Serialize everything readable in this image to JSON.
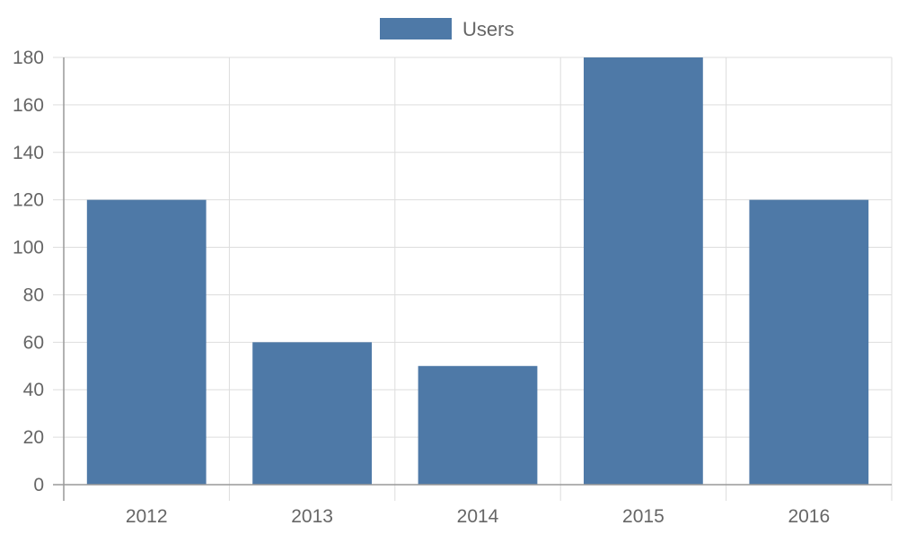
{
  "chart_data": {
    "type": "bar",
    "categories": [
      "2012",
      "2013",
      "2014",
      "2015",
      "2016"
    ],
    "series": [
      {
        "name": "Users",
        "values": [
          120,
          60,
          50,
          180,
          120
        ],
        "color": "#4e79a7"
      }
    ],
    "ylim": [
      0,
      180
    ],
    "yticks": [
      0,
      20,
      40,
      60,
      80,
      100,
      120,
      140,
      160,
      180
    ],
    "grid": true,
    "legend": "top-center",
    "colors": {
      "grid": "#dddddd",
      "axis": "#999999",
      "text": "#666666"
    }
  }
}
